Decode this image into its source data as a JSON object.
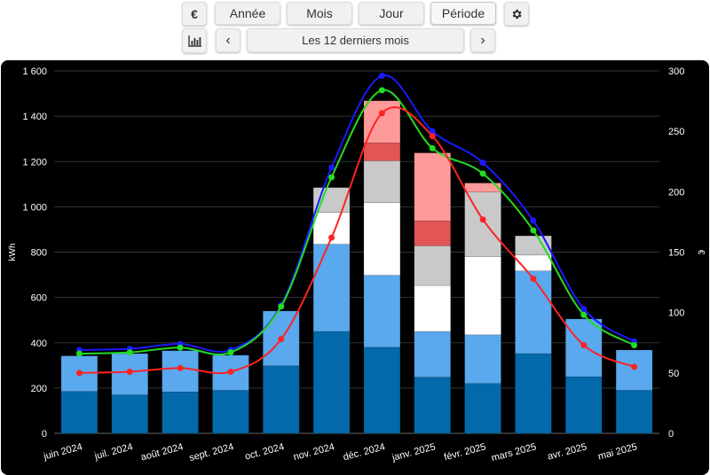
{
  "toolbar": {
    "currency_icon_label": "€",
    "tabs": [
      {
        "label": "Année"
      },
      {
        "label": "Mois"
      },
      {
        "label": "Jour"
      },
      {
        "label": "Période"
      }
    ],
    "active_tab": "Période",
    "period_label": "Les 12 derniers mois",
    "prev_symbol": "‹",
    "next_symbol": "›"
  },
  "colors": {
    "bar_dark_blue": "#0369ab",
    "bar_light_blue": "#5aa8ee",
    "bar_white": "#ffffff",
    "bar_grey": "#c9c9c9",
    "bar_dark_red": "#e25555",
    "bar_light_red": "#ff9a9a",
    "line_blue": "#1a1aff",
    "line_green": "#22dd22",
    "line_red": "#ff2222"
  },
  "chart_data": {
    "type": "bar",
    "stacked": true,
    "categories": [
      "juin 2024",
      "juil. 2024",
      "août 2024",
      "sept. 2024",
      "oct. 2024",
      "nov. 2024",
      "déc. 2024",
      "janv. 2025",
      "févr. 2025",
      "mars 2025",
      "avr. 2025",
      "mai 2025"
    ],
    "ylabel": "kWh",
    "y2label": "€",
    "ylim": [
      0,
      1600
    ],
    "y2lim": [
      0,
      300
    ],
    "yticks": [
      0,
      200,
      400,
      600,
      800,
      1000,
      1200,
      1400,
      1600
    ],
    "ytick_labels": [
      "0",
      "200",
      "400",
      "600",
      "800",
      "1 000",
      "1 200",
      "1 400",
      "1 600"
    ],
    "y2ticks": [
      0,
      50,
      100,
      150,
      200,
      250,
      300
    ],
    "grid": true,
    "legend": "none",
    "series": [
      {
        "color": "#0369ab",
        "values": [
          185,
          170,
          183,
          190,
          298,
          450,
          380,
          248,
          220,
          352,
          250,
          190
        ]
      },
      {
        "color": "#5aa8ee",
        "values": [
          157,
          182,
          182,
          155,
          242,
          385,
          318,
          202,
          215,
          365,
          255,
          178
        ]
      },
      {
        "color": "#ffffff",
        "values": [
          0,
          0,
          0,
          0,
          0,
          140,
          320,
          203,
          345,
          70,
          0,
          0
        ]
      },
      {
        "color": "#c9c9c9",
        "values": [
          0,
          0,
          0,
          0,
          0,
          110,
          185,
          175,
          285,
          85,
          0,
          0
        ]
      },
      {
        "color": "#e25555",
        "values": [
          0,
          0,
          0,
          0,
          0,
          0,
          80,
          110,
          0,
          0,
          0,
          0
        ]
      },
      {
        "color": "#ff9a9a",
        "values": [
          0,
          0,
          0,
          0,
          0,
          0,
          185,
          300,
          40,
          0,
          0,
          0
        ]
      }
    ],
    "lines": [
      {
        "color": "#1a1aff",
        "axis": "right",
        "values": [
          69,
          70,
          74,
          69,
          106,
          220,
          296,
          250,
          224,
          176,
          103,
          76
        ]
      },
      {
        "color": "#22dd22",
        "axis": "right",
        "values": [
          66,
          67,
          71,
          67,
          105,
          212,
          284,
          236,
          215,
          168,
          98,
          73
        ]
      },
      {
        "color": "#ff2222",
        "axis": "right",
        "values": [
          50,
          51,
          54,
          51,
          78,
          162,
          265,
          246,
          177,
          128,
          73,
          55
        ]
      }
    ]
  }
}
